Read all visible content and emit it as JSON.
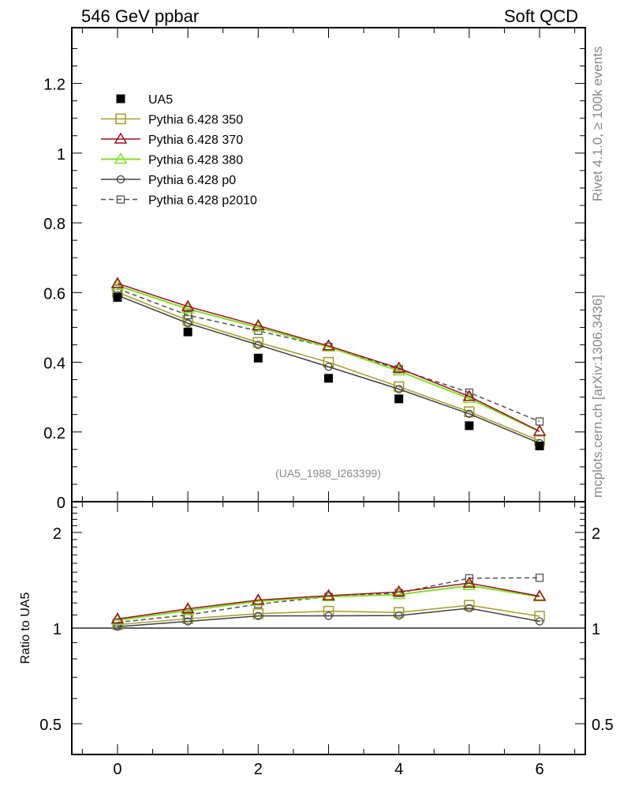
{
  "header": {
    "title_left": "546 GeV ppbar",
    "title_right": "Soft QCD"
  },
  "side_labels": {
    "rivet": "Rivet 4.1.0, ≥ 100k events",
    "mcplots": "mcplots.cern.ch [arXiv:1306.3436]"
  },
  "chart_data": [
    {
      "type": "line",
      "panel": "main",
      "annotation": "(UA5_1988_I263399)",
      "xlim": [
        -0.65,
        6.65
      ],
      "ylim": [
        0,
        1.36
      ],
      "yticks": [
        0,
        0.2,
        0.4,
        0.6,
        0.8,
        1,
        1.2
      ],
      "ytick_labels": [
        "0",
        "0.2",
        "0.4",
        "0.6",
        "0.8",
        "1",
        "1.2"
      ],
      "xticks": [
        0,
        2,
        4,
        6
      ],
      "legend_position": "top-left",
      "x": [
        0,
        1,
        2,
        3,
        4,
        5,
        6
      ],
      "series": [
        {
          "name": "UA5",
          "color": "#000000",
          "marker": "square-filled",
          "line": "none",
          "values": [
            0.586,
            0.487,
            0.412,
            0.354,
            0.295,
            0.218,
            0.16
          ]
        },
        {
          "name": "Pythia 6.428 350",
          "color": "#a39b28",
          "marker": "square-open",
          "line": "solid",
          "values": [
            0.601,
            0.52,
            0.457,
            0.4,
            0.33,
            0.258,
            0.175
          ]
        },
        {
          "name": "Pythia 6.428 370",
          "color": "#9b1020",
          "marker": "triangle-open",
          "line": "solid",
          "values": [
            0.626,
            0.56,
            0.505,
            0.447,
            0.383,
            0.302,
            0.202
          ]
        },
        {
          "name": "Pythia 6.428 380",
          "color": "#80e020",
          "marker": "triangle-open",
          "line": "solid",
          "values": [
            0.62,
            0.553,
            0.5,
            0.444,
            0.375,
            0.296,
            0.201
          ]
        },
        {
          "name": "Pythia 6.428 p0",
          "color": "#404040",
          "marker": "circle-open",
          "line": "solid",
          "values": [
            0.592,
            0.512,
            0.45,
            0.387,
            0.323,
            0.252,
            0.168
          ]
        },
        {
          "name": "Pythia 6.428 p2010",
          "color": "#505058",
          "marker": "square-open-small",
          "line": "dashed",
          "values": [
            0.611,
            0.535,
            0.49,
            0.444,
            0.38,
            0.313,
            0.23
          ]
        }
      ]
    },
    {
      "type": "line",
      "panel": "ratio",
      "ylabel": "Ratio to UA5",
      "xlim": [
        -0.65,
        6.65
      ],
      "ylim": [
        0.4,
        2.5
      ],
      "reference": 1,
      "yticks": [
        0.5,
        1,
        2
      ],
      "ytick_labels": [
        "0.5",
        "1",
        "2"
      ],
      "xticks": [
        0,
        2,
        4,
        6
      ],
      "xtick_labels": [
        "0",
        "2",
        "4",
        "6"
      ],
      "x": [
        0,
        1,
        2,
        3,
        4,
        5,
        6
      ],
      "series": [
        {
          "name": "Pythia 6.428 350",
          "color": "#a39b28",
          "marker": "square-open",
          "line": "solid",
          "values": [
            1.025,
            1.07,
            1.11,
            1.13,
            1.12,
            1.18,
            1.09
          ]
        },
        {
          "name": "Pythia 6.428 370",
          "color": "#9b1020",
          "marker": "triangle-open",
          "line": "solid",
          "values": [
            1.068,
            1.15,
            1.225,
            1.265,
            1.3,
            1.385,
            1.26
          ]
        },
        {
          "name": "Pythia 6.428 380",
          "color": "#80e020",
          "marker": "triangle-open",
          "line": "solid",
          "values": [
            1.058,
            1.135,
            1.215,
            1.255,
            1.275,
            1.36,
            1.255
          ]
        },
        {
          "name": "Pythia 6.428 p0",
          "color": "#404040",
          "marker": "circle-open",
          "line": "solid",
          "values": [
            1.01,
            1.05,
            1.092,
            1.093,
            1.095,
            1.155,
            1.05
          ]
        },
        {
          "name": "Pythia 6.428 p2010",
          "color": "#505058",
          "marker": "square-open-small",
          "line": "dashed",
          "values": [
            1.042,
            1.1,
            1.19,
            1.255,
            1.29,
            1.435,
            1.44
          ]
        }
      ]
    }
  ]
}
